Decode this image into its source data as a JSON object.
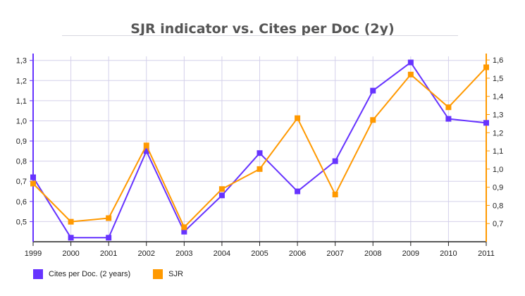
{
  "chart_data": {
    "type": "line",
    "title": "SJR indicator vs. Cites per Doc (2y)",
    "categories": [
      "1999",
      "2000",
      "2001",
      "2002",
      "2003",
      "2004",
      "2005",
      "2006",
      "2007",
      "2008",
      "2009",
      "2010",
      "2011"
    ],
    "y_left": {
      "ylim": [
        0.4,
        1.32
      ],
      "ticks": [
        "0,5",
        "0,6",
        "0,7",
        "0,8",
        "0,9",
        "1,0",
        "1,1",
        "1,2",
        "1,3"
      ],
      "tick_values": [
        0.5,
        0.6,
        0.7,
        0.8,
        0.9,
        1.0,
        1.1,
        1.2,
        1.3
      ]
    },
    "y_right": {
      "ylim": [
        0.6,
        1.62
      ],
      "ticks": [
        "0,7",
        "0,8",
        "0,9",
        "1,0",
        "1,1",
        "1,2",
        "1,3",
        "1,4",
        "1,5",
        "1,6"
      ],
      "tick_values": [
        0.7,
        0.8,
        0.9,
        1.0,
        1.1,
        1.2,
        1.3,
        1.4,
        1.5,
        1.6
      ]
    },
    "series": [
      {
        "name": "Cites per Doc. (2 years)",
        "axis": "left",
        "color": "#6633ff",
        "values": [
          0.72,
          0.42,
          0.42,
          0.85,
          0.45,
          0.63,
          0.84,
          0.65,
          0.8,
          1.15,
          1.29,
          1.01,
          0.99
        ]
      },
      {
        "name": "SJR",
        "axis": "right",
        "color": "#ff9900",
        "values": [
          0.92,
          0.71,
          0.73,
          1.13,
          0.68,
          0.89,
          1.0,
          1.28,
          0.86,
          1.27,
          1.52,
          1.34,
          1.56
        ]
      }
    ],
    "grid": true,
    "legend": "bottom-left"
  }
}
